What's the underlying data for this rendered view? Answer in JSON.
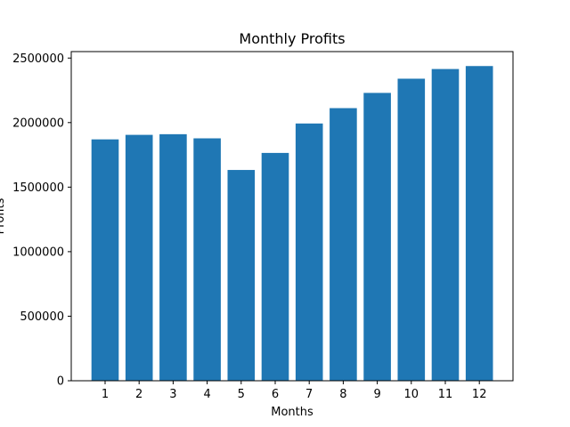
{
  "chart_data": {
    "type": "bar",
    "title": "Monthly Profits",
    "xlabel": "Months",
    "ylabel": "Profits",
    "categories": [
      "1",
      "2",
      "3",
      "4",
      "5",
      "6",
      "7",
      "8",
      "9",
      "10",
      "11",
      "12"
    ],
    "values": [
      1870000,
      1905000,
      1910000,
      1878000,
      1633000,
      1765000,
      1993000,
      2112000,
      2230000,
      2340000,
      2415000,
      2438000
    ],
    "ylim": [
      0,
      2550000
    ],
    "yticks": [
      0,
      500000,
      1000000,
      1500000,
      2000000,
      2500000
    ],
    "ytick_labels": [
      "0",
      "500000",
      "1000000",
      "1500000",
      "2000000",
      "2500000"
    ],
    "bar_color": "#1f77b4",
    "grid": false,
    "legend": "none"
  }
}
